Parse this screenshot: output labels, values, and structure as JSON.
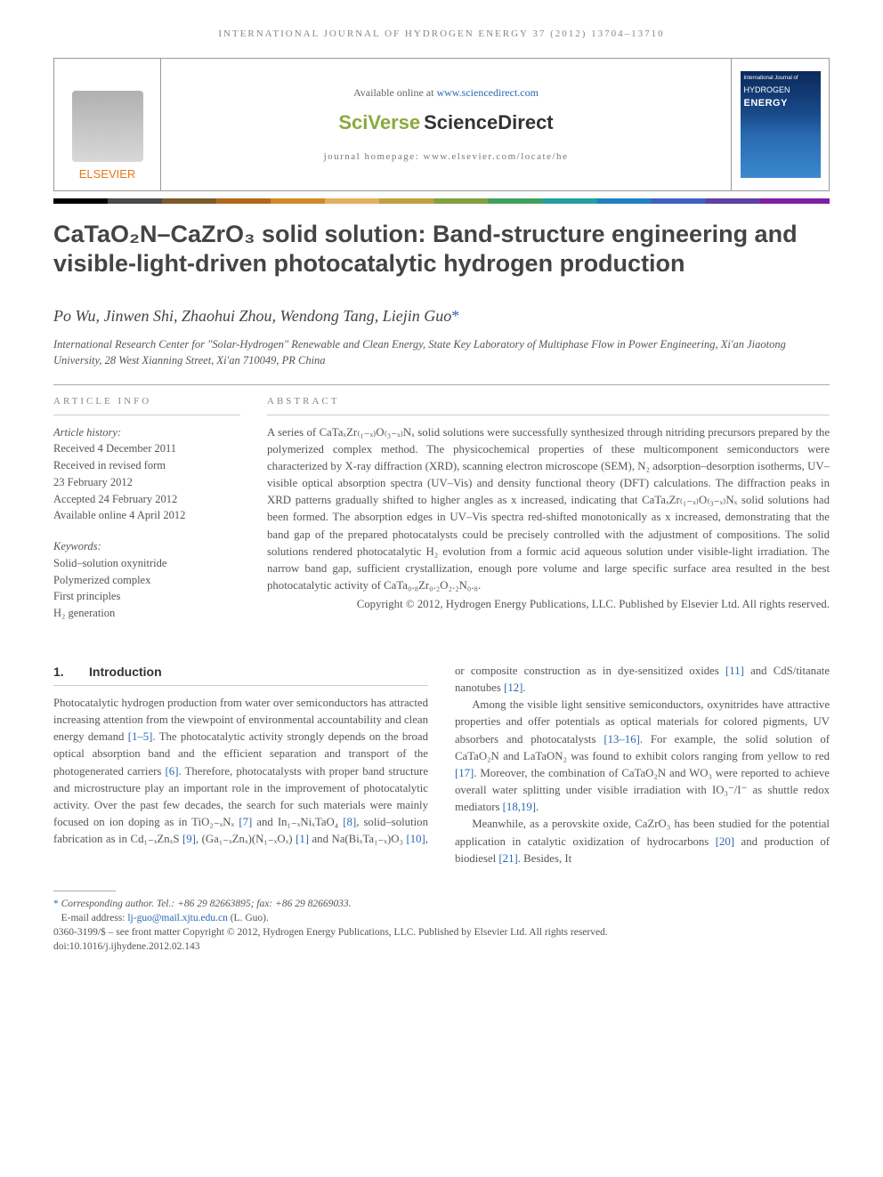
{
  "runningHead": "INTERNATIONAL JOURNAL OF HYDROGEN ENERGY 37 (2012) 13704–13710",
  "header": {
    "elsevier": "ELSEVIER",
    "availablePrefix": "Available online at ",
    "availableLink": "www.sciencedirect.com",
    "brand1": "SciVerse",
    "brand2": "ScienceDirect",
    "homepage": "journal homepage: www.elsevier.com/locate/he",
    "coverTop": "International Journal of",
    "coverTitle1": "HYDROGEN",
    "coverTitle2": "ENERGY"
  },
  "title": "CaTaO₂N–CaZrO₃ solid solution: Band-structure engineering and visible-light-driven photocatalytic hydrogen production",
  "authors": "Po Wu, Jinwen Shi, Zhaohui Zhou, Wendong Tang, Liejin Guo",
  "affiliation": "International Research Center for \"Solar-Hydrogen\" Renewable and Clean Energy, State Key Laboratory of Multiphase Flow in Power Engineering, Xi'an Jiaotong University, 28 West Xianning Street, Xi'an 710049, PR China",
  "articleInfo": {
    "header": "ARTICLE INFO",
    "historyHdr": "Article history:",
    "history": [
      "Received 4 December 2011",
      "Received in revised form",
      "23 February 2012",
      "Accepted 24 February 2012",
      "Available online 4 April 2012"
    ],
    "keywordsHdr": "Keywords:",
    "keywords": [
      "Solid–solution oxynitride",
      "Polymerized complex",
      "First principles",
      "H₂ generation"
    ]
  },
  "abstract": {
    "header": "ABSTRACT",
    "text": "A series of CaTaₓZr₍₁₋ₓ₎O₍₃₋ₓ₎Nₓ solid solutions were successfully synthesized through nitriding precursors prepared by the polymerized complex method. The physicochemical properties of these multicomponent semiconductors were characterized by X-ray diffraction (XRD), scanning electron microscope (SEM), N₂ adsorption–desorption isotherms, UV–visible optical absorption spectra (UV–Vis) and density functional theory (DFT) calculations. The diffraction peaks in XRD patterns gradually shifted to higher angles as x increased, indicating that CaTaₓZr₍₁₋ₓ₎O₍₃₋ₓ₎Nₓ solid solutions had been formed. The absorption edges in UV–Vis spectra red-shifted monotonically as x increased, demonstrating that the band gap of the prepared photocatalysts could be precisely controlled with the adjustment of compositions. The solid solutions rendered photocatalytic H₂ evolution from a formic acid aqueous solution under visible-light irradiation. The narrow band gap, sufficient crystallization, enough pore volume and large specific surface area resulted in the best photocatalytic activity of CaTa₀.₈Zr₀.₂O₂.₂N₀.₈.",
    "copyright": "Copyright © 2012, Hydrogen Energy Publications, LLC. Published by Elsevier Ltd. All rights reserved."
  },
  "intro": {
    "num": "1.",
    "title": "Introduction",
    "p1": "Photocatalytic hydrogen production from water over semiconductors has attracted increasing attention from the viewpoint of environmental accountability and clean energy demand [1–5]. The photocatalytic activity strongly depends on the broad optical absorption band and the efficient separation and transport of the photogenerated carriers [6]. Therefore, photocatalysts with proper band structure and microstructure play an important role in the improvement of photocatalytic activity. Over the past few decades, the search for such materials were mainly focused on ion doping as in TiO₂₋ₓNₓ [7] and In₁₋ₓNiₓTaO₄ [8], solid–solution fabrication as in Cd₁₋ₓZnₓS [9], (Ga₁₋ₓZnₓ)(N₁₋ₓOₓ) [1] and Na(BiₓTa₁₋ₓ)O₃ [10], or composite construction as in dye-sensitized oxides [11] and CdS/titanate nanotubes [12].",
    "p2": "Among the visible light sensitive semiconductors, oxynitrides have attractive properties and offer potentials as optical materials for colored pigments, UV absorbers and photocatalysts [13–16]. For example, the solid solution of CaTaO₂N and LaTaON₂ was found to exhibit colors ranging from yellow to red [17]. Moreover, the combination of CaTaO₂N and WO₃ were reported to achieve overall water splitting under visible irradiation with IO₃⁻/I⁻ as shuttle redox mediators [18,19].",
    "p3": "Meanwhile, as a perovskite oxide, CaZrO₃ has been studied for the potential application in catalytic oxidization of hydrocarbons [20] and production of biodiesel [21]. Besides, It"
  },
  "footnotes": {
    "corr": "Corresponding author. Tel.: +86 29 82663895; fax: +86 29 82669033.",
    "emailLabel": "E-mail address: ",
    "email": "lj-guo@mail.xjtu.edu.cn",
    "emailSuffix": " (L. Guo).",
    "matter": "0360-3199/$ – see front matter Copyright © 2012, Hydrogen Energy Publications, LLC. Published by Elsevier Ltd. All rights reserved.",
    "doi": "doi:10.1016/j.ijhydene.2012.02.143"
  },
  "colors": {
    "link": "#2a67b1",
    "elsevierOrange": "#e67817",
    "sciverseGreen": "#8aaa3a"
  }
}
